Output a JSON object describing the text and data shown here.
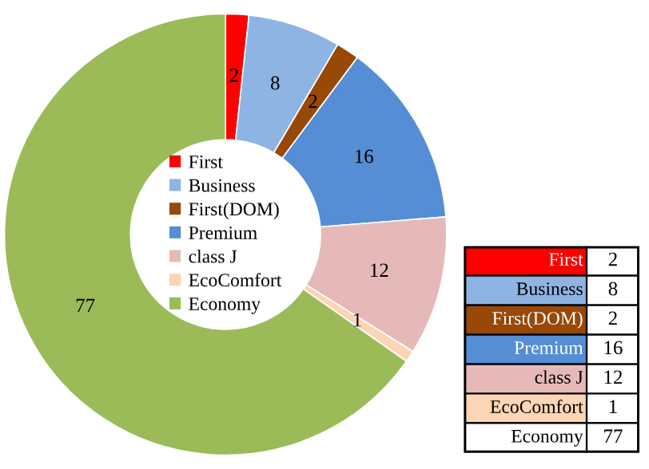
{
  "chart_data": {
    "type": "donut",
    "categories": [
      "First",
      "Business",
      "First(DOM)",
      "Premium",
      "class J",
      "EcoComfort",
      "Economy"
    ],
    "values": [
      2,
      8,
      2,
      16,
      12,
      1,
      77
    ],
    "colors": [
      "#ff0000",
      "#8eb4e3",
      "#984807",
      "#558ed5",
      "#e6b9b8",
      "#fcd5b5",
      "#9bbb59"
    ],
    "annotations": [
      "2",
      "8",
      "2",
      "16",
      "12",
      "1",
      "77"
    ],
    "data_labels": true,
    "legend": "center"
  }
}
